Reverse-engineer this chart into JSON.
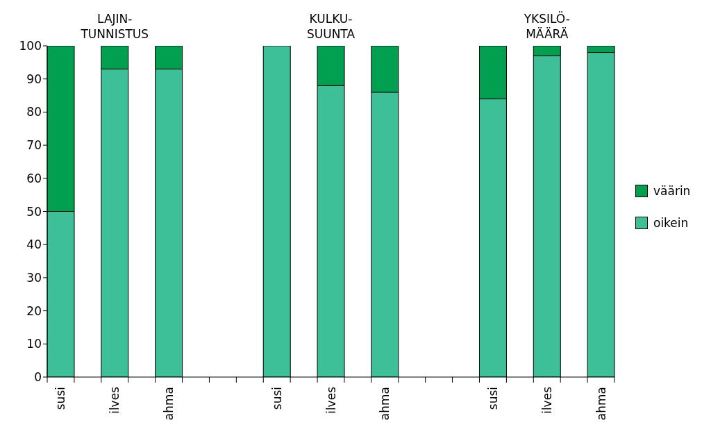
{
  "chart_data": {
    "type": "bar",
    "stacked": true,
    "categories": [
      "susi",
      null,
      "ilves",
      null,
      "ahma",
      null,
      null,
      null,
      "susi",
      null,
      "ilves",
      null,
      "ahma",
      null,
      null,
      null,
      "susi",
      null,
      "ilves",
      null,
      "ahma"
    ],
    "series": [
      {
        "name": "oikein",
        "color": "#3dbf98",
        "values": [
          50,
          null,
          93,
          null,
          93,
          null,
          null,
          null,
          100,
          null,
          88,
          null,
          86,
          null,
          null,
          null,
          84,
          null,
          97,
          null,
          98
        ]
      },
      {
        "name": "väärin",
        "color": "#00a050",
        "values": [
          50,
          null,
          7,
          null,
          7,
          null,
          null,
          null,
          0,
          null,
          12,
          null,
          14,
          null,
          null,
          null,
          16,
          null,
          3,
          null,
          2
        ]
      }
    ],
    "ylim": [
      0,
      100
    ],
    "yticks": [
      0,
      10,
      20,
      30,
      40,
      50,
      60,
      70,
      80,
      90,
      100
    ],
    "annotations": [
      "LAJIN-\nTUNNISTUS",
      "KULKU-\nSUUNTA",
      "YKSILÖ-\nMÄÄRÄ"
    ],
    "legend": "right"
  }
}
